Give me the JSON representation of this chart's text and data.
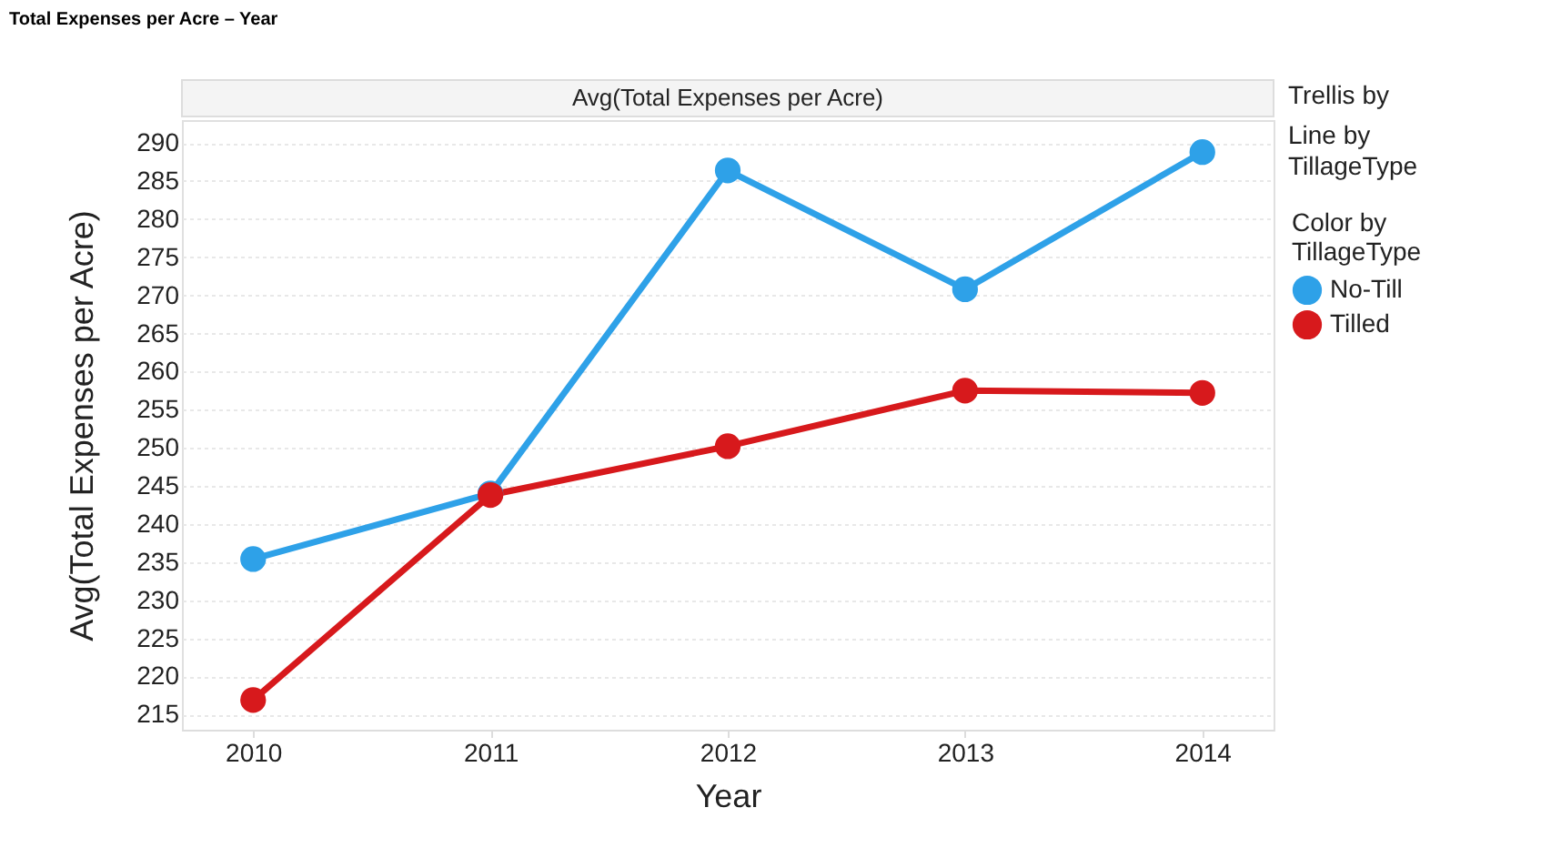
{
  "chart_data": {
    "type": "line",
    "title": "Total Expenses per Acre – Year",
    "subtitle": "Avg(Total Expenses per Acre)",
    "xlabel": "Year",
    "ylabel": "Avg(Total Expenses per Acre)",
    "legend_title": "Color by TillageType",
    "annotations": [
      "Trellis by",
      "Line by TillageType"
    ],
    "categories": [
      "2010",
      "2011",
      "2012",
      "2013",
      "2014"
    ],
    "series": [
      {
        "name": "No-Till",
        "color": "#2ea1e8",
        "values": [
          235.4,
          244,
          286.4,
          270.8,
          288.8
        ]
      },
      {
        "name": "Tilled",
        "color": "#d7191c",
        "values": [
          216.9,
          243.8,
          250.2,
          257.5,
          257.2
        ]
      }
    ],
    "ylim": [
      213,
      293
    ],
    "yticks": [
      215,
      220,
      225,
      230,
      235,
      240,
      245,
      250,
      255,
      260,
      265,
      270,
      275,
      280,
      285,
      290
    ],
    "grid": "y",
    "legend": "right",
    "marker": "circle",
    "line_style": "solid"
  }
}
